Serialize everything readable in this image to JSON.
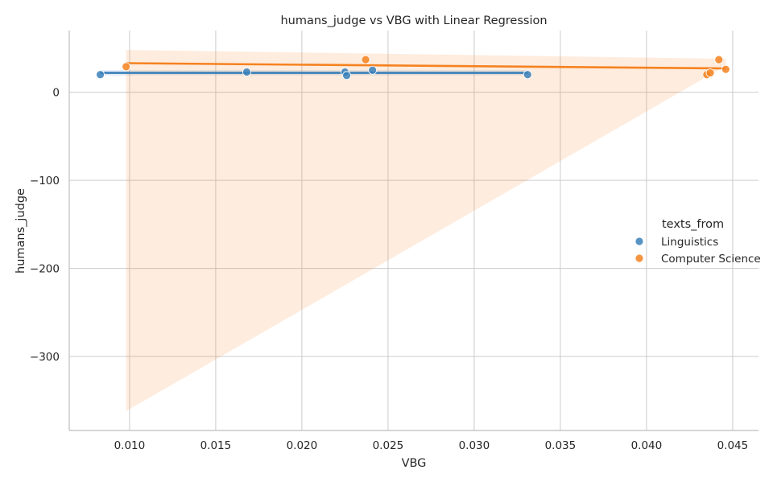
{
  "chart_data": {
    "type": "scatter",
    "title": "humans_judge vs VBG with Linear Regression",
    "xlabel": "VBG",
    "ylabel": "humans_judge",
    "xlim": [
      0.0065,
      0.0465
    ],
    "ylim": [
      -384,
      70
    ],
    "xticks": [
      0.01,
      0.015,
      0.02,
      0.025,
      0.03,
      0.035,
      0.04,
      0.045
    ],
    "xtick_labels": [
      "0.010",
      "0.015",
      "0.020",
      "0.025",
      "0.030",
      "0.035",
      "0.040",
      "0.045"
    ],
    "yticks": [
      0,
      -100,
      -200,
      -300
    ],
    "ytick_labels": [
      "0",
      "−100",
      "−200",
      "−300"
    ],
    "grid": true,
    "legend": {
      "title": "texts_from",
      "position": "right"
    },
    "series": [
      {
        "name": "Linguistics",
        "color": "#3a80b9",
        "points": [
          {
            "x": 0.0083,
            "y": 20
          },
          {
            "x": 0.0168,
            "y": 23
          },
          {
            "x": 0.0225,
            "y": 23
          },
          {
            "x": 0.0226,
            "y": 19
          },
          {
            "x": 0.0241,
            "y": 25
          },
          {
            "x": 0.0331,
            "y": 20
          }
        ],
        "regression": {
          "x": [
            0.0083,
            0.0331
          ],
          "y": [
            22,
            22
          ]
        },
        "ci_band": {
          "x": [
            0.0083,
            0.0331
          ],
          "upper": [
            25,
            25
          ],
          "lower": [
            19,
            19
          ]
        }
      },
      {
        "name": "Computer Science",
        "color": "#f58220",
        "points": [
          {
            "x": 0.0098,
            "y": 29
          },
          {
            "x": 0.0237,
            "y": 37
          },
          {
            "x": 0.0435,
            "y": 20
          },
          {
            "x": 0.0437,
            "y": 22
          },
          {
            "x": 0.0442,
            "y": 37
          },
          {
            "x": 0.0446,
            "y": 26
          }
        ],
        "regression": {
          "x": [
            0.0098,
            0.0446
          ],
          "y": [
            33,
            27
          ]
        },
        "ci_band": {
          "x": [
            0.0098,
            0.0446
          ],
          "upper": [
            48,
            38
          ],
          "lower": [
            -362,
            30
          ]
        }
      }
    ]
  }
}
